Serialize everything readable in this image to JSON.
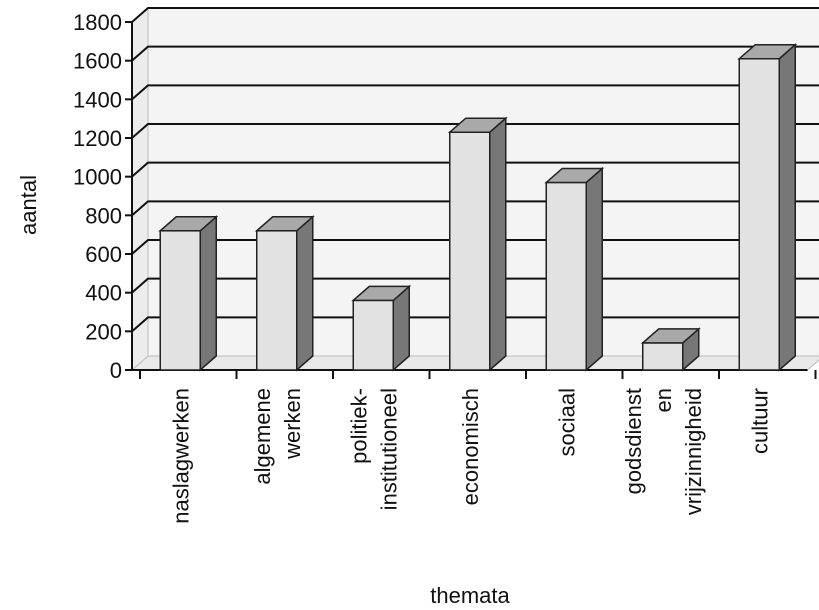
{
  "chart_data": {
    "type": "bar",
    "style": "3d",
    "title": "",
    "xlabel": "themata",
    "ylabel": "aantal",
    "ylim": [
      0,
      1800
    ],
    "yticks": [
      0,
      200,
      400,
      600,
      800,
      1000,
      1200,
      1400,
      1600,
      1800
    ],
    "grid": true,
    "legend": "none",
    "categories": [
      [
        "naslagwerken"
      ],
      [
        "algemene",
        "werken"
      ],
      [
        "politiek-",
        "institutioneel"
      ],
      [
        "economisch"
      ],
      [
        "sociaal"
      ],
      [
        "godsdienst",
        "en",
        "vrijzinnigheid"
      ],
      [
        "cultuur"
      ]
    ],
    "values": [
      720,
      720,
      360,
      1230,
      970,
      140,
      1610
    ],
    "colors": {
      "bar_front": "#e2e2e2",
      "bar_top": "#a9a9a9",
      "bar_side": "#777777",
      "grid": "#111111",
      "wall": "#f4f4f4"
    }
  }
}
